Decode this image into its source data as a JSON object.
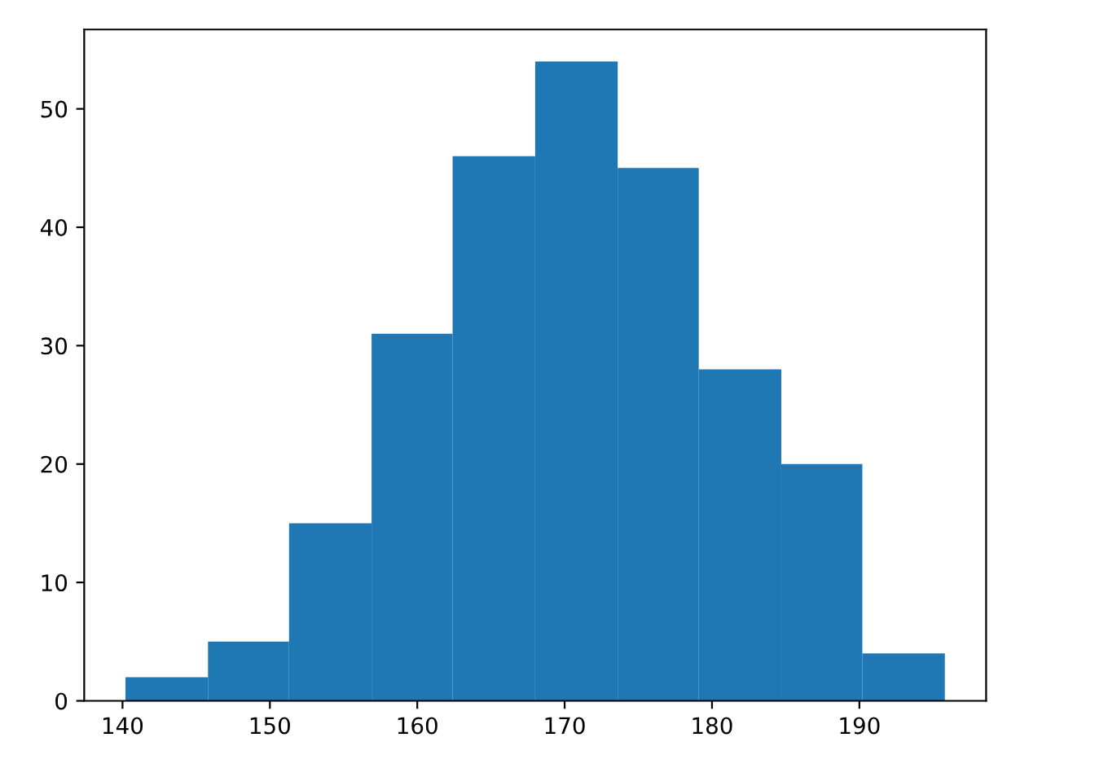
{
  "chart_data": {
    "type": "histogram",
    "bins": [
      140.2,
      145.8,
      151.3,
      156.9,
      162.4,
      168.0,
      173.6,
      179.1,
      184.7,
      190.2,
      195.8
    ],
    "values": [
      2,
      5,
      15,
      31,
      46,
      54,
      45,
      28,
      20,
      4
    ],
    "color": "#1f77b4",
    "xlim": [
      137.4,
      198.6
    ],
    "ylim": [
      0,
      56.7
    ],
    "xticks": [
      140,
      150,
      160,
      170,
      180,
      190
    ],
    "yticks": [
      0,
      10,
      20,
      30,
      40,
      50
    ],
    "grid": false,
    "legend": false
  }
}
